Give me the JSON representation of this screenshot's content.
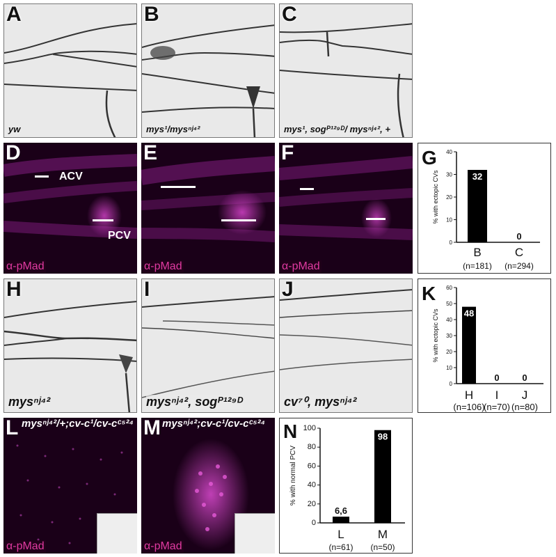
{
  "panels": {
    "A": {
      "letter": "A",
      "genotype": "yw"
    },
    "B": {
      "letter": "B",
      "genotype": "mys¹/mysⁿʲ⁴²"
    },
    "C": {
      "letter": "C",
      "genotype": "mys¹, sogᴾ¹²⁹ᴰ/ mysⁿʲ⁴², +"
    },
    "D": {
      "letter": "D",
      "label_acv": "ACV",
      "label_pcv": "PCV",
      "stain": "α-pMad"
    },
    "E": {
      "letter": "E",
      "stain": "α-pMad"
    },
    "F": {
      "letter": "F",
      "stain": "α-pMad"
    },
    "H": {
      "letter": "H",
      "genotype": "mysⁿʲ⁴²"
    },
    "I": {
      "letter": "I",
      "genotype": "mysⁿʲ⁴², sogᴾ¹²⁹ᴰ"
    },
    "J": {
      "letter": "J",
      "genotype": "cv⁷⁰, mysⁿʲ⁴²"
    },
    "L": {
      "letter": "L",
      "genotype": "mysⁿʲ⁴²/+;cv-c¹/cv-cᶜ⁵²⁴",
      "stain": "α-pMad"
    },
    "M": {
      "letter": "M",
      "genotype": "mysⁿʲ⁴²;cv-c¹/cv-cᶜ⁵²⁴",
      "stain": "α-pMad"
    }
  },
  "chart_data": [
    {
      "id": "G",
      "type": "bar",
      "letter": "G",
      "ylabel": "% with ectopic CVs",
      "ylim": [
        0,
        40
      ],
      "yticks": [
        "0",
        "10",
        "20",
        "30",
        "40"
      ],
      "categories": [
        "B",
        "C"
      ],
      "values": [
        32,
        0
      ],
      "value_labels": [
        "32",
        "0"
      ],
      "n_labels": [
        "(n=181)",
        "(n=294)"
      ]
    },
    {
      "id": "K",
      "type": "bar",
      "letter": "K",
      "ylabel": "% with ectopic CVs",
      "ylim": [
        0,
        60
      ],
      "yticks": [
        "0",
        "10",
        "20",
        "30",
        "40",
        "50",
        "60"
      ],
      "categories": [
        "H",
        "I",
        "J"
      ],
      "values": [
        48,
        0,
        0
      ],
      "value_labels": [
        "48",
        "0",
        "0"
      ],
      "n_labels": [
        "(n=106)",
        "(n=70)",
        "(n=80)"
      ]
    },
    {
      "id": "N",
      "type": "bar",
      "letter": "N",
      "ylabel": "% with normal PCV",
      "ylim": [
        0,
        100
      ],
      "yticks": [
        "0",
        "20",
        "40",
        "60",
        "80",
        "100"
      ],
      "categories": [
        "L",
        "M"
      ],
      "values": [
        6.6,
        98
      ],
      "value_labels": [
        "6,6",
        "98"
      ],
      "n_labels": [
        "(n=61)",
        "(n=50)"
      ]
    }
  ]
}
